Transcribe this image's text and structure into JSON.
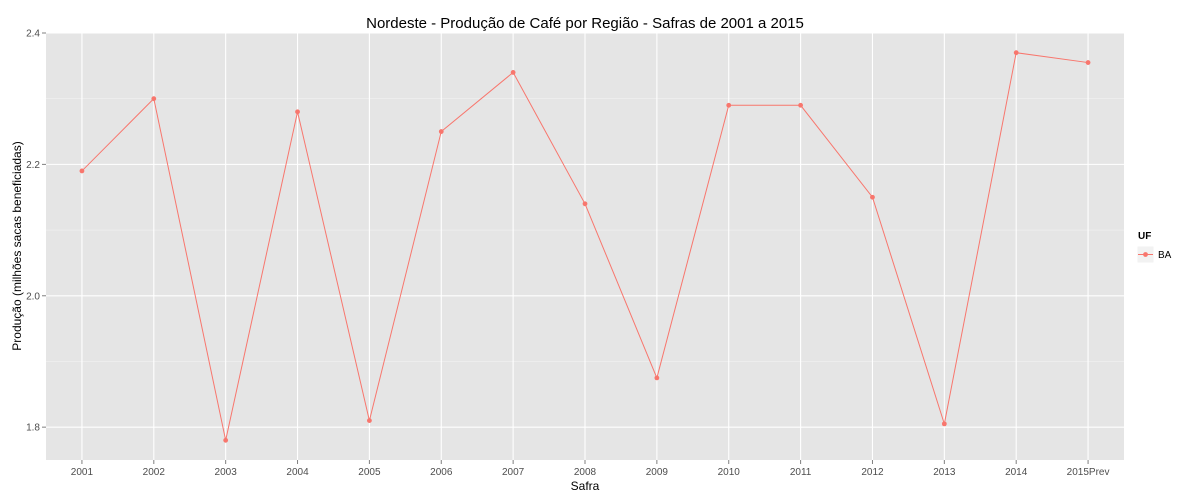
{
  "chart_data": {
    "type": "line",
    "title": "Nordeste  - Produção de Café por Região - Safras de 2001 a 2015",
    "xlabel": "Safra",
    "ylabel": "Produção (milhões sacas beneficiadas)",
    "categories": [
      "2001",
      "2002",
      "2003",
      "2004",
      "2005",
      "2006",
      "2007",
      "2008",
      "2009",
      "2010",
      "2011",
      "2012",
      "2013",
      "2014",
      "2015Prev"
    ],
    "series": [
      {
        "name": "BA",
        "values": [
          2.19,
          2.3,
          1.78,
          2.28,
          1.81,
          2.25,
          2.34,
          2.14,
          1.875,
          2.29,
          2.29,
          2.15,
          1.805,
          2.37,
          2.355
        ]
      }
    ],
    "ylim": [
      1.75,
      2.4
    ],
    "yticks": [
      1.8,
      2.0,
      2.2,
      2.4
    ],
    "ytick_labels": [
      "1.8",
      "2.0",
      "2.2",
      "2.4"
    ],
    "grid": true,
    "legend": {
      "title": "UF",
      "position": "right"
    },
    "colors": {
      "series": "#f8766d",
      "panel": "#e5e5e5",
      "grid": "#ffffff",
      "minor_grid": "#f2f2f2"
    }
  }
}
